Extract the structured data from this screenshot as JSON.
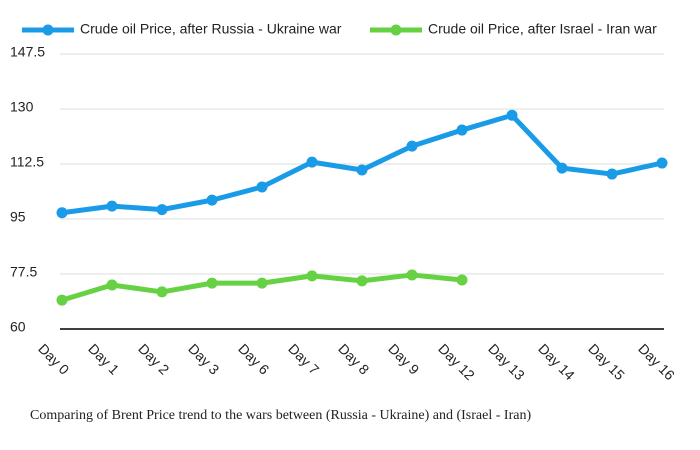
{
  "chart_data": {
    "type": "line",
    "caption": "Comparing of Brent Price trend to the wars between (Russia - Ukraine) and (Israel - Iran)",
    "categories": [
      "Day 0",
      "Day 1",
      "Day 2",
      "Day 3",
      "Day 6",
      "Day 7",
      "Day 8",
      "Day 9",
      "Day 12",
      "Day 13",
      "Day 14",
      "Day 15",
      "Day 16"
    ],
    "series": [
      {
        "name": "Crude oil Price, after Russia - Ukraine war",
        "color": "#1a9be8",
        "values": [
          97,
          99.1,
          98,
          101,
          105.2,
          113.1,
          110.6,
          118.2,
          123.3,
          128,
          111.2,
          109.3,
          112.8
        ]
      },
      {
        "name": "Crude oil Price, after Israel - Iran war",
        "color": "#66d142",
        "values": [
          69.2,
          74,
          71.8,
          74.6,
          74.6,
          76.9,
          75.3,
          77.2,
          75.6,
          null,
          null,
          null,
          null
        ]
      }
    ],
    "ylim": [
      60,
      147.5
    ],
    "yticks": [
      60,
      77.5,
      95,
      112.5,
      130,
      147.5
    ],
    "grid": true,
    "legend": "top"
  }
}
